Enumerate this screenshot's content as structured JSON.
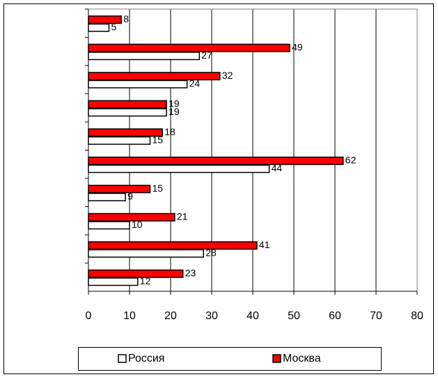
{
  "chart_data": {
    "type": "bar",
    "orientation": "horizontal",
    "categories": [
      null,
      null,
      null,
      null,
      null,
      null,
      null,
      null,
      null,
      null
    ],
    "series": [
      {
        "name": "Россия",
        "color": "#ffffff",
        "values": [
          5,
          27,
          24,
          19,
          15,
          44,
          9,
          10,
          28,
          12
        ]
      },
      {
        "name": "Москва",
        "color": "#ff0000",
        "values": [
          8,
          49,
          32,
          19,
          18,
          62,
          15,
          21,
          41,
          23
        ]
      }
    ],
    "xlim": [
      0,
      80
    ],
    "xticks": [
      0,
      10,
      20,
      30,
      40,
      50,
      60,
      70,
      80
    ],
    "grid": true,
    "legend": "bottom"
  }
}
